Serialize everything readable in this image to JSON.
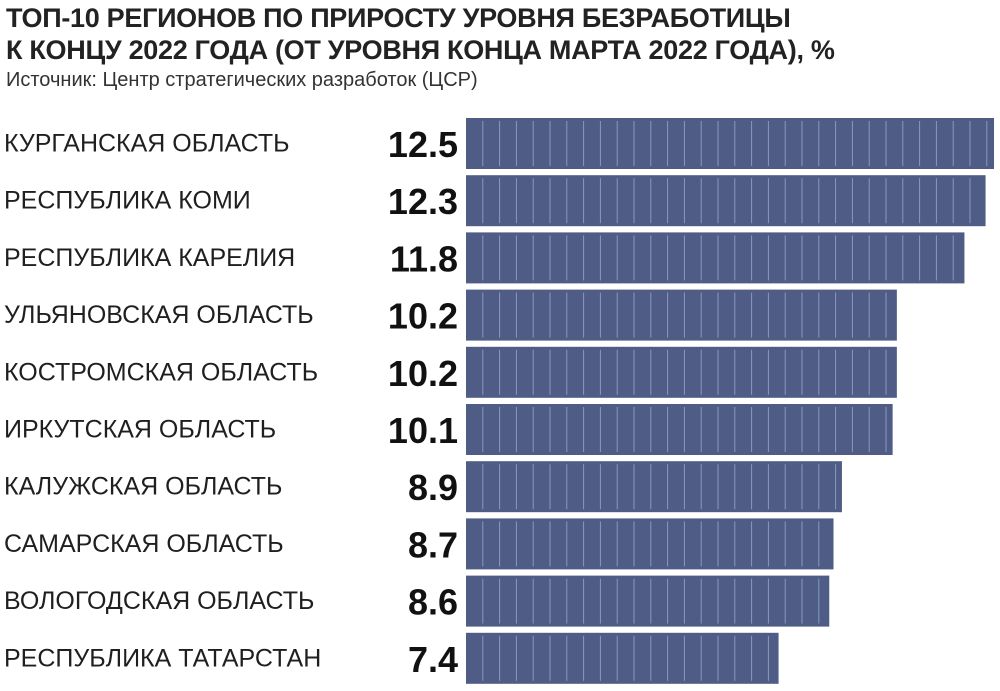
{
  "header": {
    "title_line1": "ТОП-10 РЕГИОНОВ ПО ПРИРОСТУ УРОВНЯ БЕЗРАБОТИЦЫ",
    "title_line2": "К КОНЦУ 2022  ГОДА (ОТ  УРОВНЯ КОНЦА МАРТА 2022 ГОДА), %",
    "source": "Источник: Центр стратегических разработок (ЦСР)"
  },
  "colors": {
    "bar": "#4e5c86",
    "bar_divider": "#8c98bd",
    "text": "#1f1f1f"
  },
  "chart_data": {
    "type": "bar",
    "orientation": "horizontal",
    "title": "ТОП-10 РЕГИОНОВ ПО ПРИРОСТУ УРОВНЯ БЕЗРАБОТИЦЫ К КОНЦУ 2022  ГОДА (ОТ  УРОВНЯ КОНЦА МАРТА 2022 ГОДА), %",
    "categories": [
      "КУРГАНСКАЯ ОБЛАСТЬ",
      "РЕСПУБЛИКА КОМИ",
      "РЕСПУБЛИКА КАРЕЛИЯ",
      "УЛЬЯНОВСКАЯ ОБЛАСТЬ",
      "КОСТРОМСКАЯ ОБЛАСТЬ",
      "ИРКУТСКАЯ ОБЛАСТЬ",
      "КАЛУЖСКАЯ ОБЛАСТЬ",
      "САМАРСКАЯ ОБЛАСТЬ",
      "ВОЛОГОДСКАЯ ОБЛАСТЬ",
      "РЕСПУБЛИКА ТАТАРСТАН"
    ],
    "values": [
      12.5,
      12.3,
      11.8,
      10.2,
      10.2,
      10.1,
      8.9,
      8.7,
      8.6,
      7.4
    ],
    "value_labels": [
      "12.5",
      "12.3",
      "11.8",
      "10.2",
      "10.2",
      "10.1",
      "8.9",
      "8.7",
      "8.6",
      "7.4"
    ],
    "xlim": [
      0,
      12.5
    ],
    "grid": false,
    "legend": "none"
  }
}
